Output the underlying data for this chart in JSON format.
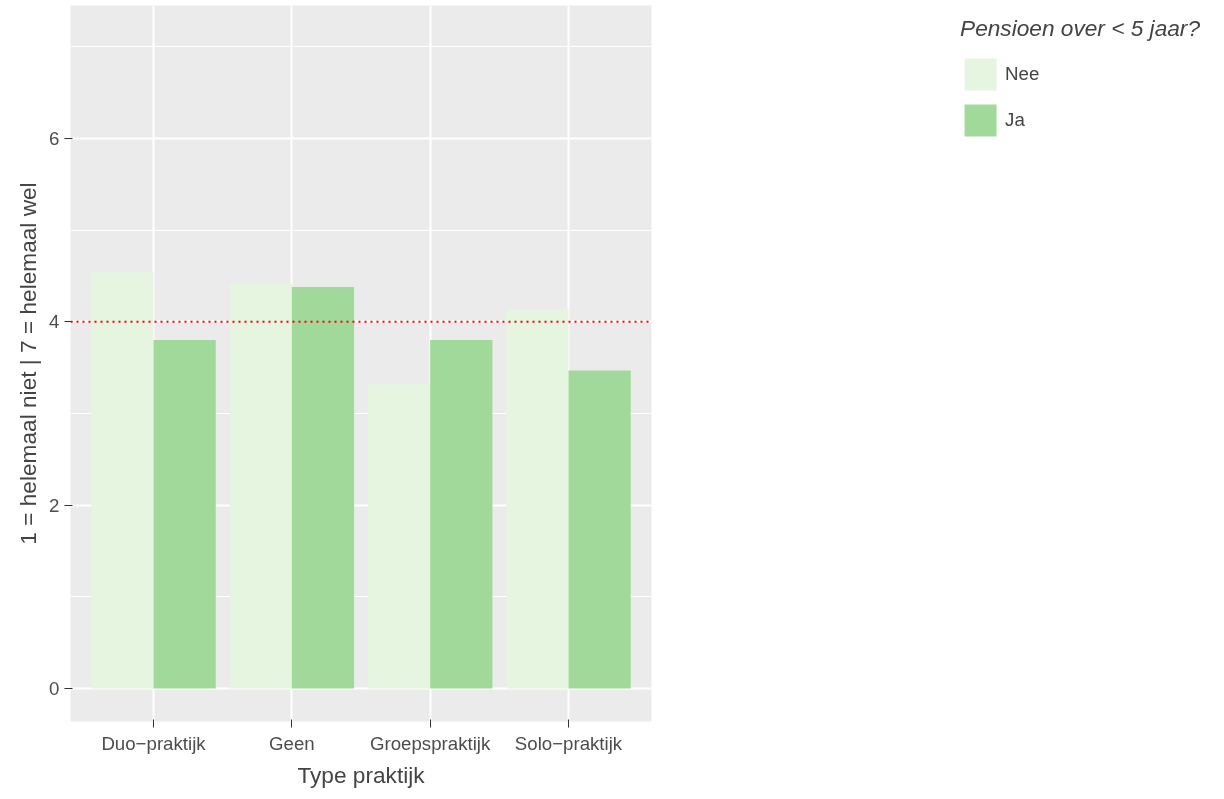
{
  "chart_data": {
    "type": "bar",
    "xlabel": "Type praktijk",
    "ylabel": "1 = helemaal niet | 7 = helemaal wel",
    "legend_title": "Pensioen over < 5 jaar?",
    "categories": [
      "Duo−praktijk",
      "Geen",
      "Groepspraktijk",
      "Solo−praktijk"
    ],
    "series": [
      {
        "name": "Nee",
        "color": "#e5f5e0",
        "values": [
          4.54,
          4.42,
          3.32,
          4.14
        ]
      },
      {
        "name": "Ja",
        "color": "#a1d99b",
        "values": [
          3.8,
          4.38,
          3.8,
          3.47
        ]
      }
    ],
    "ylim": [
      -0.36,
      7.45
    ],
    "yticks": [
      0,
      2,
      4,
      6
    ],
    "grid": true,
    "legend": "right",
    "ref_lines": [
      {
        "axis": "y",
        "value": 4,
        "color": "#ff0000",
        "line_style": "dotted"
      }
    ]
  }
}
